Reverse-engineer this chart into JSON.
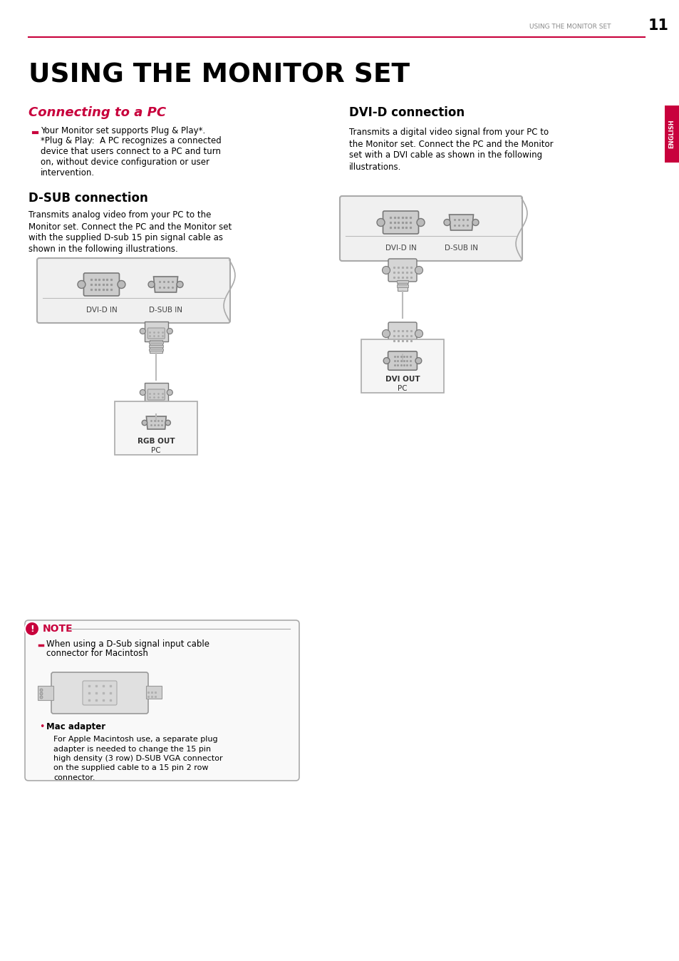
{
  "page_number": "11",
  "header_text": "USING THE MONITOR SET",
  "main_title": "USING THE MONITOR SET",
  "section1_title": "Connecting to a PC",
  "section1_bullet": "Your Monitor set supports Plug & Play*.\n*Plug & Play:  A PC recognizes a connected\ndevice that users connect to a PC and turn\non, without device configuration or user\nintervention.",
  "dsub_title": "D-SUB connection",
  "dsub_body": "Transmits analog video from your PC to the\nMonitor set. Connect the PC and the Monitor set\nwith the supplied D-sub 15 pin signal cable as\nshown in the following illustrations.",
  "dvid_title": "DVI-D connection",
  "dvid_body": "Transmits a digital video signal from your PC to\nthe Monitor set. Connect the PC and the Monitor\nset with a DVI cable as shown in the following\nillustrations.",
  "note_title": "NOTE",
  "note_bullet": "When using a D-Sub signal input cable\nconnector for Macintosh",
  "mac_adapter_label": "Mac adapter",
  "mac_adapter_body": "For Apple Macintosh use, a separate plug\nadapter is needed to change the 15 pin\nhigh density (3 row) D-SUB VGA connector\non the supplied cable to a 15 pin 2 row\nconnector.",
  "accent_color": "#c8003c",
  "text_color": "#000000",
  "header_color": "#888888",
  "bg_color": "#ffffff",
  "english_tab_color": "#c8003c",
  "english_tab_text": "ENGLISH"
}
